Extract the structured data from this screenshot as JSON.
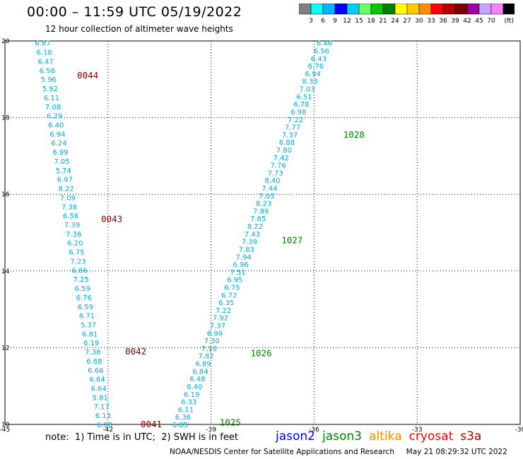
{
  "header": {
    "title": "00:00 – 11:59 UTC 05/19/2022",
    "subtitle": "12 hour collection of altimeter wave heights"
  },
  "color_scale": {
    "labels": [
      "3",
      "6",
      "9",
      "12",
      "15",
      "18",
      "21",
      "24",
      "27",
      "30",
      "33",
      "36",
      "39",
      "42",
      "45",
      "70"
    ],
    "unit": "(ft)",
    "colors": [
      "#808080",
      "#00ffff",
      "#00b4ff",
      "#0000ff",
      "#00cdff",
      "#66ff66",
      "#00c800",
      "#008000",
      "#ffff00",
      "#ffc800",
      "#ff8c00",
      "#ff0000",
      "#b40000",
      "#800000",
      "#a000a0",
      "#c8a0ff",
      "#ff80ff",
      "#000000"
    ]
  },
  "axes": {
    "x_ticks": [
      "-45",
      "-42",
      "-39",
      "-36",
      "-33",
      "-30"
    ],
    "y_ticks": [
      "20",
      "18",
      "16",
      "14",
      "12",
      "10"
    ],
    "x_values": [
      -45,
      -42,
      -39,
      -36,
      -33,
      -30
    ],
    "y_values": [
      20,
      18,
      16,
      14,
      12,
      10
    ]
  },
  "colors": {
    "wave_label": "#00aadc",
    "pass_west": "#800000",
    "pass_east": "#008000",
    "grid": "#000000"
  },
  "tracks": [
    {
      "name": "west",
      "lat_start": 19.95,
      "lat_end": 10.0,
      "lon_start": -43.9,
      "lon_end": -42.1,
      "values": [
        "6.87",
        "6.18",
        "6.47",
        "6.58",
        "5.96",
        "5.92",
        "6.11",
        "7.08",
        "6.29",
        "6.40",
        "6.94",
        "6.24",
        "6.99",
        "7.05",
        "5.74",
        "6.97",
        "8.22",
        "7.09",
        "7.38",
        "6.56",
        "7.39",
        "7.36",
        "6.20",
        "6.75",
        "7.23",
        "6.86",
        "7.25",
        "6.59",
        "6.76",
        "6.59",
        "6.71",
        "5.37",
        "6.81",
        "6.19",
        "7.38",
        "6.68",
        "6.66",
        "6.64",
        "6.64",
        "5.81",
        "7.17",
        "6.13",
        "6.08"
      ]
    },
    {
      "name": "east",
      "lat_start": 19.95,
      "lat_end": 10.0,
      "lon_start": -35.7,
      "lon_end": -39.9,
      "values": [
        "6.46",
        "6.56",
        "6.43",
        "6.76",
        "6.94",
        "8.33",
        "7.03",
        "6.51",
        "6.78",
        "6.98",
        "7.22",
        "7.77",
        "7.37",
        "6.88",
        "7.80",
        "7.42",
        "7.76",
        "7.73",
        "8.40",
        "7.44",
        "7.05",
        "8.23",
        "7.89",
        "7.65",
        "8.22",
        "7.43",
        "7.39",
        "7.83",
        "7.94",
        "6.96",
        "7.51",
        "6.95",
        "6.75",
        "6.72",
        "6.35",
        "7.22",
        "7.92",
        "7.37",
        "6.99",
        "7.30",
        "7.10",
        "7.82",
        "6.89",
        "6.84",
        "6.48",
        "6.40",
        "6.19",
        "6.33",
        "6.11",
        "6.36",
        "6.85"
      ]
    }
  ],
  "pass_labels": [
    {
      "text": "0044",
      "lon": -42.9,
      "lat": 19.1,
      "group": "west"
    },
    {
      "text": "0043",
      "lon": -42.2,
      "lat": 15.35,
      "group": "west"
    },
    {
      "text": "0042",
      "lon": -41.5,
      "lat": 11.9,
      "group": "west"
    },
    {
      "text": "0041",
      "lon": -41.05,
      "lat": 10.0,
      "group": "west"
    },
    {
      "text": "1028",
      "lon": -35.15,
      "lat": 17.55,
      "group": "east"
    },
    {
      "text": "1027",
      "lon": -36.95,
      "lat": 14.8,
      "group": "east"
    },
    {
      "text": "1026",
      "lon": -37.85,
      "lat": 11.85,
      "group": "east"
    },
    {
      "text": "1025",
      "lon": -38.75,
      "lat": 10.05,
      "group": "east"
    }
  ],
  "note": "note:  1) Time is in UTC;  2) SWH is in feet",
  "missions": [
    {
      "name": "jason2",
      "color": "#0000ff"
    },
    {
      "name": "jason3",
      "color": "#008000"
    },
    {
      "name": "altika",
      "color": "#ff8c00"
    },
    {
      "name": "cryosat",
      "color": "#ff0000"
    },
    {
      "name": "s3a",
      "color": "#b40000"
    }
  ],
  "credit": "NOAA/NESDIS Center for Satellite Applications and Research     May 21 08:29:32 UTC 2022"
}
